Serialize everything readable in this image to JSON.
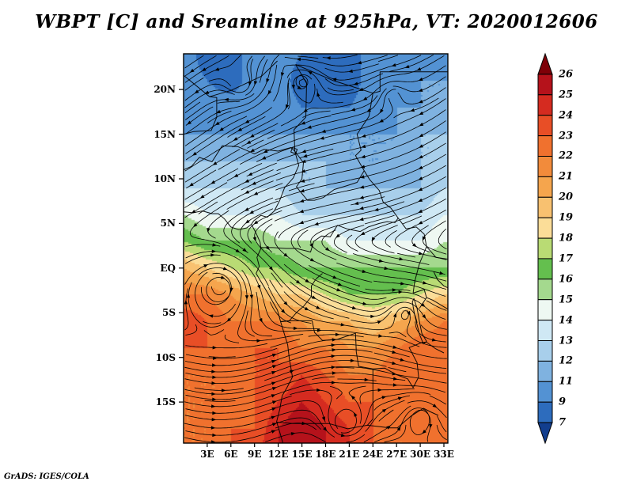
{
  "title": "WBPT [C] and Sreamline at 925hPa, VT: 2020012606",
  "credit": "GrADS: IGES/COLA",
  "chart_data": {
    "type": "heatmap",
    "title": "WBPT [C] and Sreamline at 925hPa, VT: 2020012606",
    "variable": "WBPT [C]",
    "overlay": "streamlines",
    "pressure_level": "925hPa",
    "valid_time": "2020012606",
    "x_tick_labels": [
      "3E",
      "6E",
      "9E",
      "12E",
      "15E",
      "18E",
      "21E",
      "24E",
      "27E",
      "30E",
      "33E"
    ],
    "y_tick_labels": [
      "20N",
      "15N",
      "10N",
      "5N",
      "EQ",
      "5S",
      "10S",
      "15S"
    ],
    "y_tick_lats": [
      20,
      15,
      10,
      5,
      0,
      -5,
      -10,
      -15
    ],
    "x_tick_lons": [
      3,
      6,
      9,
      12,
      15,
      18,
      21,
      24,
      27,
      30,
      33
    ],
    "lon_range": [
      0,
      33.5
    ],
    "lat_range": [
      -19.6,
      24
    ],
    "colorbar": {
      "levels": [
        26,
        25,
        24,
        23,
        22,
        21,
        20,
        19,
        18,
        17,
        16,
        15,
        14,
        13,
        12,
        11,
        9,
        7
      ],
      "colors": [
        "#7e0008",
        "#b5121b",
        "#d52b20",
        "#e84e26",
        "#f0712e",
        "#f28b3b",
        "#f5a54d",
        "#f8c170",
        "#fbdd98",
        "#b9db74",
        "#64bf4e",
        "#a4d98e",
        "#eef8f2",
        "#cfe8f4",
        "#a8cfeb",
        "#7fb2e0",
        "#5392d3",
        "#2d6cbd",
        "#123e8e"
      ]
    },
    "field_grid": {
      "description": "Estimated WBPT (C) on a 3-degree grid, rows from 24N to 21S, cols from 0E to 33E",
      "lon_start": 0,
      "lon_step": 3,
      "lat_start": 24,
      "lat_step": -3,
      "values": [
        [
          10,
          8,
          8,
          10,
          10,
          9,
          8,
          8,
          10,
          10,
          10,
          10
        ],
        [
          10,
          9,
          8,
          10,
          10,
          8,
          8,
          8,
          10,
          10,
          11,
          11
        ],
        [
          11,
          10,
          10,
          10,
          10,
          9,
          9,
          9,
          10,
          11,
          11,
          11
        ],
        [
          11,
          11,
          11,
          11,
          11,
          11,
          11,
          11,
          11,
          11,
          12,
          12
        ],
        [
          12,
          12,
          12,
          12,
          12,
          12,
          12,
          11,
          11,
          11,
          12,
          12
        ],
        [
          13,
          13,
          13,
          13,
          13,
          12,
          12,
          12,
          12,
          12,
          12,
          13
        ],
        [
          15,
          14,
          14,
          14,
          14,
          13,
          13,
          13,
          13,
          13,
          13,
          14
        ],
        [
          17,
          16,
          16,
          16,
          15,
          15,
          15,
          14,
          14,
          14,
          14,
          15
        ],
        [
          20,
          19,
          18,
          17,
          17,
          16,
          16,
          16,
          16,
          16,
          16,
          16
        ],
        [
          22,
          22,
          21,
          20,
          19,
          19,
          18,
          17,
          17,
          17,
          18,
          19
        ],
        [
          24,
          23,
          22,
          22,
          22,
          21,
          20,
          20,
          19,
          20,
          21,
          22
        ],
        [
          23,
          23,
          23,
          23,
          23,
          22,
          22,
          21,
          21,
          22,
          23,
          23
        ],
        [
          22,
          22,
          22,
          23,
          23,
          24,
          23,
          22,
          22,
          23,
          23,
          22
        ],
        [
          22,
          22,
          22,
          23,
          24,
          25,
          24,
          23,
          23,
          23,
          22,
          22
        ],
        [
          22,
          22,
          23,
          23,
          25,
          26,
          25,
          24,
          23,
          22,
          22,
          23
        ],
        [
          22,
          22,
          23,
          24,
          25,
          26,
          25,
          24,
          23,
          22,
          22,
          23
        ]
      ]
    },
    "circulation_centers": [
      {
        "lon": 4.5,
        "lat": -2,
        "rotation": "ccw",
        "strength": 1.9,
        "radius_px": 55
      },
      {
        "lon": 15,
        "lat": 21,
        "rotation": "cw",
        "strength": 1.5,
        "radius_px": 34
      },
      {
        "lon": 7.5,
        "lat": 20.5,
        "rotation": "ccw",
        "strength": 1.2,
        "radius_px": 30
      },
      {
        "lon": 12.5,
        "lat": 23.2,
        "rotation": "cw",
        "strength": 1.0,
        "radius_px": 24
      },
      {
        "lon": 20.5,
        "lat": -17.5,
        "rotation": "cw",
        "strength": 1.5,
        "radius_px": 40
      },
      {
        "lon": 30,
        "lat": -16.5,
        "rotation": "ccw",
        "strength": 1.2,
        "radius_px": 34
      },
      {
        "lon": 26.5,
        "lat": 19.5,
        "rotation": "cw",
        "strength": 0.9,
        "radius_px": 26
      },
      {
        "lon": 28,
        "lat": -5,
        "rotation": "ccw",
        "strength": 0.8,
        "radius_px": 30
      }
    ]
  }
}
